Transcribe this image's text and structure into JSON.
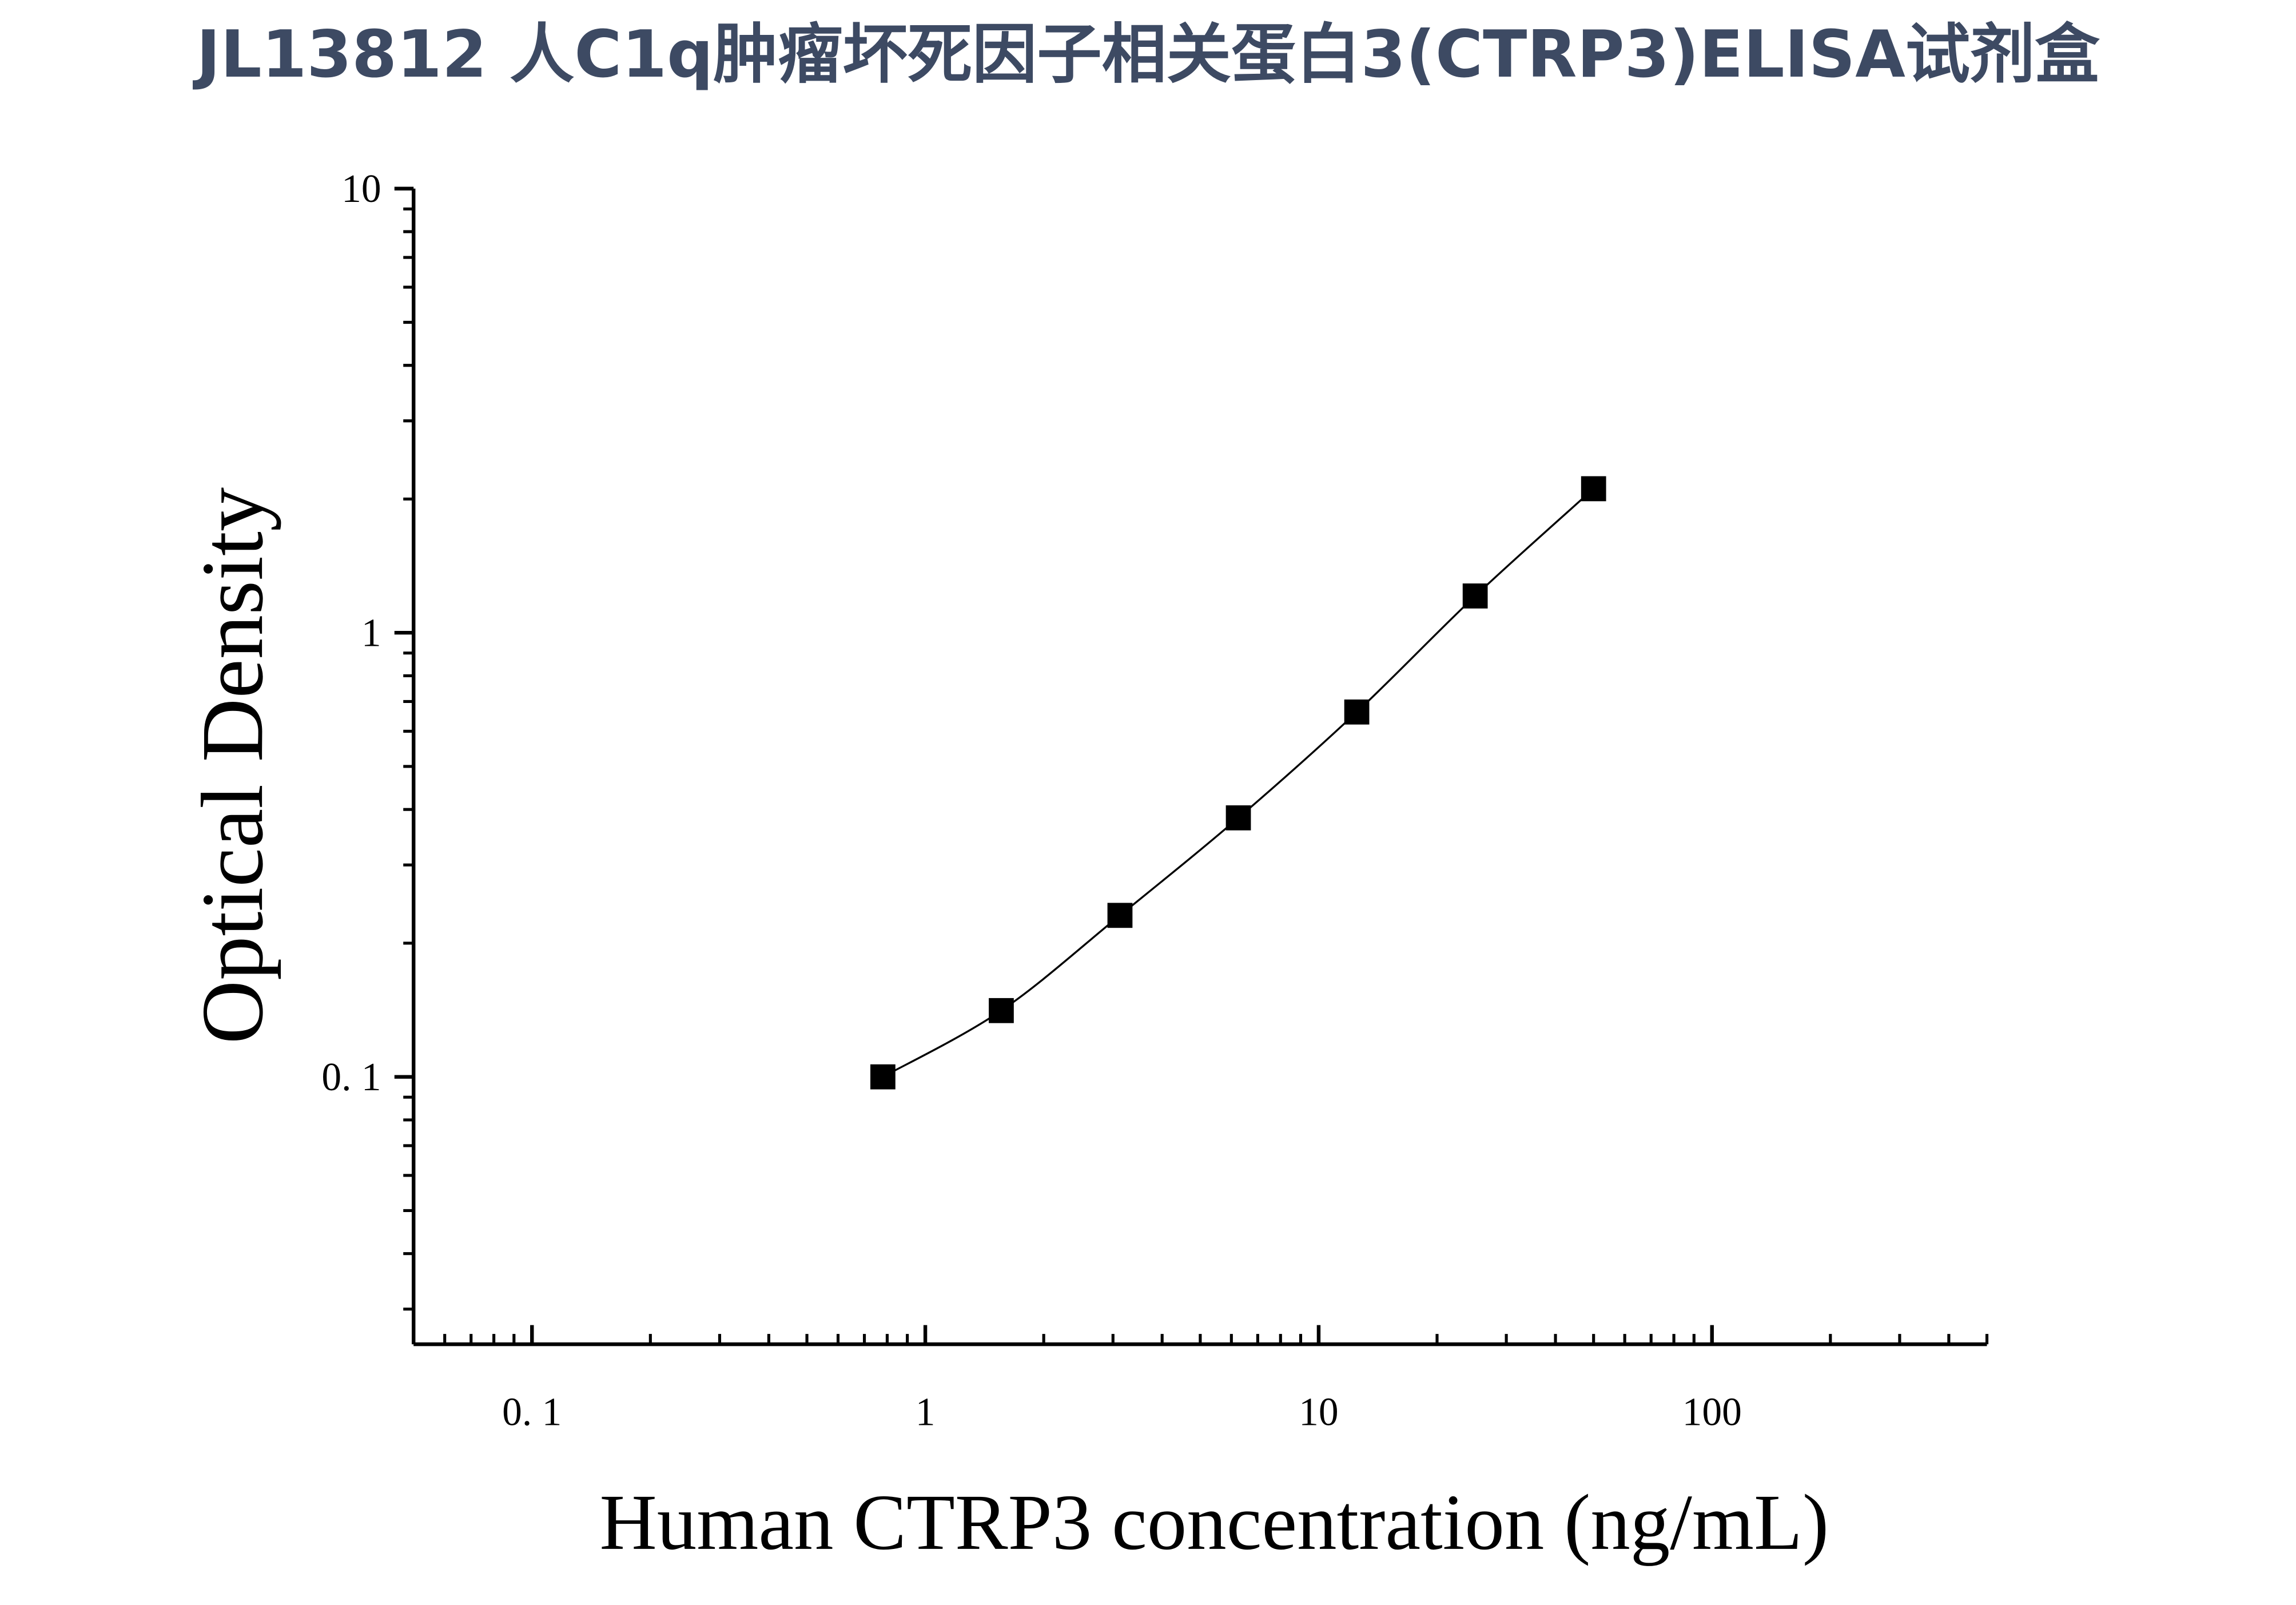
{
  "chart_data": {
    "type": "scatter",
    "title": "JL13812 人C1q肿瘤坏死因子相关蛋白3(CTRP3)ELISA试剂盒",
    "x_label": "Human CTRP3 concentration (ng/mL)",
    "y_label": "Optical Density",
    "x_log": true,
    "y_log": true,
    "minor_ticks": true,
    "connect_line": true,
    "xlim": [
      0.05,
      500
    ],
    "ylim": [
      0.025,
      10
    ],
    "xticks": [
      {
        "value": 0.1,
        "label": "0. 1"
      },
      1,
      10,
      100
    ],
    "yticks": [
      {
        "value": 0.1,
        "label": "0. 1"
      },
      1,
      10
    ],
    "series": [
      {
        "color": "#000000",
        "x": [
          0.78,
          1.56,
          3.125,
          6.25,
          12.5,
          25,
          50
        ],
        "values": [
          0.1,
          0.141,
          0.231,
          0.383,
          0.663,
          1.21,
          2.11
        ]
      }
    ]
  }
}
